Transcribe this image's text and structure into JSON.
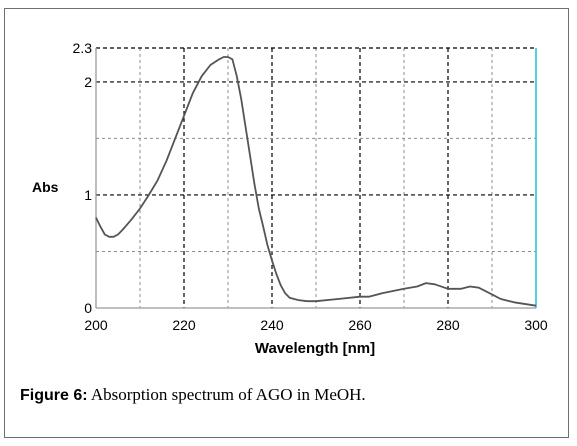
{
  "caption": {
    "label": "Figure 6:",
    "text": "Absorption spectrum of AGO in MeOH."
  },
  "chart_data": {
    "type": "line",
    "title": "",
    "xlabel": "Wavelength [nm]",
    "ylabel": "Abs",
    "xlim": [
      200,
      300
    ],
    "ylim": [
      0,
      2.3
    ],
    "x_ticks": [
      "200",
      "220",
      "240",
      "260",
      "280",
      "300"
    ],
    "y_ticks": [
      {
        "value": 0,
        "label": "0"
      },
      {
        "value": 1,
        "label": "1"
      },
      {
        "value": 2,
        "label": "2"
      },
      {
        "value": 2.3,
        "label": "2.3"
      }
    ],
    "grid": true,
    "colors": {
      "line": "#555555",
      "grid": "#000000",
      "right_edge": "#2ec4d6",
      "axis": "#9a9a9a"
    },
    "series": [
      {
        "x": [
          200,
          201,
          202,
          203,
          204,
          205,
          206,
          208,
          210,
          212,
          214,
          216,
          218,
          220,
          222,
          224,
          226,
          228,
          229,
          230,
          231,
          232,
          233,
          234,
          235,
          236,
          237,
          238,
          239,
          240,
          241,
          242,
          243,
          244,
          246,
          248,
          250,
          255,
          260,
          262,
          265,
          270,
          273,
          275,
          277,
          280,
          283,
          285,
          287,
          290,
          292,
          295,
          300
        ],
        "values": [
          0.8,
          0.72,
          0.65,
          0.63,
          0.63,
          0.65,
          0.69,
          0.78,
          0.88,
          1.0,
          1.13,
          1.3,
          1.5,
          1.7,
          1.9,
          2.05,
          2.15,
          2.2,
          2.22,
          2.22,
          2.2,
          2.05,
          1.85,
          1.6,
          1.35,
          1.1,
          0.88,
          0.72,
          0.55,
          0.42,
          0.3,
          0.2,
          0.13,
          0.09,
          0.07,
          0.06,
          0.06,
          0.08,
          0.1,
          0.1,
          0.13,
          0.17,
          0.19,
          0.22,
          0.21,
          0.17,
          0.17,
          0.19,
          0.18,
          0.12,
          0.08,
          0.05,
          0.02
        ]
      }
    ]
  }
}
